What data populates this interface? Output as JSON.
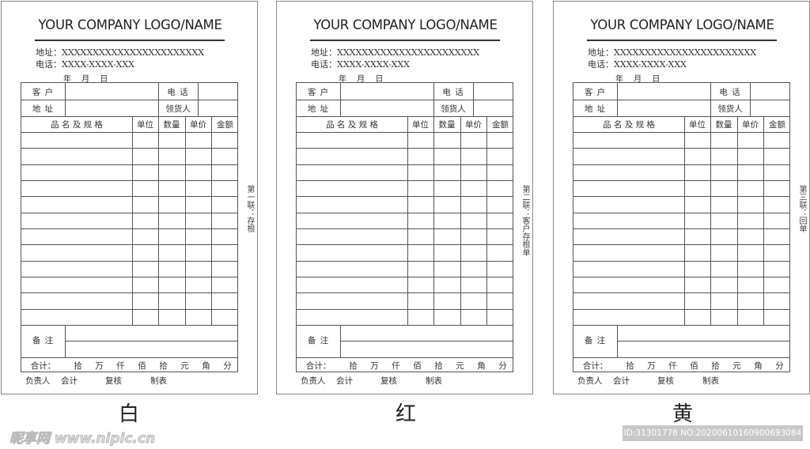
{
  "forms": [
    {
      "title": "YOUR COMPANY LOGO/NAME",
      "address": "地址：XXXXXXXXXXXXXXXXXXXXXXX",
      "phone": "电话：XXXX-XXXX-XXX",
      "date": "年　 月　 日",
      "side_label": "第一联：存根",
      "caption": "白"
    },
    {
      "title": "YOUR COMPANY LOGO/NAME",
      "address": "地址：XXXXXXXXXXXXXXXXXXXXXXX",
      "phone": "电话：XXXX-XXXX-XXX",
      "date": "年　 月　 日",
      "side_label": "第二联：客户存根单",
      "caption": "红"
    },
    {
      "title": "YOUR COMPANY LOGO/NAME",
      "address": "地址：XXXXXXXXXXXXXXXXXXXXXXX",
      "phone": "电话：XXXX-XXXX-XXX",
      "date": "年　 月　 日",
      "side_label": "第三联：回单",
      "caption": "黄"
    }
  ],
  "table": {
    "customer": "客 户",
    "address": "地 址",
    "phone": "电 话",
    "receiver": "领货人",
    "columns": [
      "品 名 及 规 格",
      "单位",
      "数量",
      "单价",
      "金额"
    ],
    "item_rows": 12,
    "remarks": "备 注",
    "total": "合计：",
    "units": [
      "拾",
      "万",
      "仟",
      "佰",
      "拾",
      "元",
      "角",
      "分"
    ]
  },
  "signatures": [
    "负责人",
    "会计",
    "复核",
    "制表"
  ],
  "watermark": "昵享网 www.nipic.cn",
  "id_bar": "ID:31301778 NO:20200610160900693084"
}
